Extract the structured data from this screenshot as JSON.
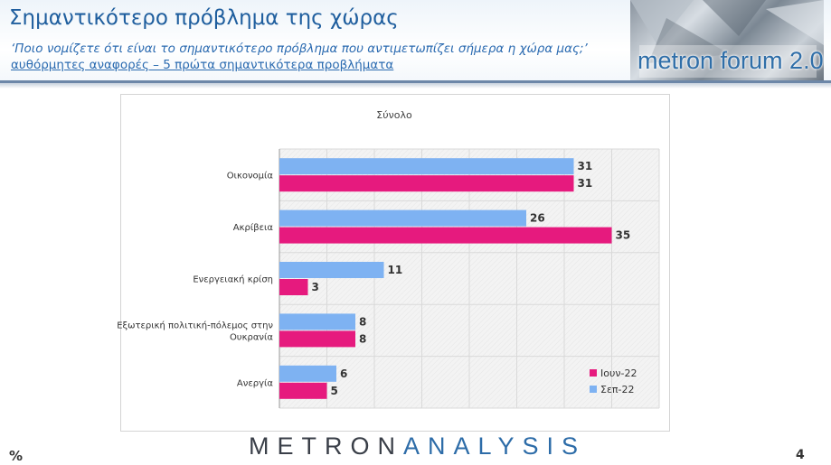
{
  "header": {
    "title": "Σημαντικότερο πρόβλημα της χώρας",
    "subtitle": "‘Ποιο νομίζετε ότι  είναι το σημαντικότερο πρόβλημα που αντιμετωπίζει σήμερα η χώρα μας;’",
    "note": "αυθόρμητες αναφορές – 5 πρώτα σημαντικότερα προβλήματα",
    "logo_text": "metron forum 2.0"
  },
  "footer": {
    "brand_part1": "METRON",
    "brand_part2": "ANALYSIS",
    "percent_symbol": "%",
    "page_number": "4"
  },
  "colors": {
    "sep_22": "#7eb2f2",
    "iun_22": "#e61a7e",
    "title_blue": "#1f5e9e",
    "header_line": "#6d87a8"
  },
  "chart_data": {
    "type": "bar",
    "orientation": "horizontal",
    "title": "Σύνολο",
    "categories": [
      "Οικονομία",
      "Ακρίβεια",
      "Ενεργειακή κρίση",
      "Εξωτερική πολιτική-πόλεμος στην Ουκρανία",
      "Ανεργία"
    ],
    "series": [
      {
        "name": "Σεπ-22",
        "color": "#7eb2f2",
        "values": [
          31,
          26,
          11,
          8,
          6
        ]
      },
      {
        "name": "Ιουν-22",
        "color": "#e61a7e",
        "values": [
          31,
          35,
          3,
          8,
          5
        ]
      }
    ],
    "xlim": [
      0,
      40
    ],
    "grid": true,
    "legend": {
      "position": "bottom-right",
      "entries": [
        "Ιουν-22",
        "Σεπ-22"
      ]
    }
  }
}
